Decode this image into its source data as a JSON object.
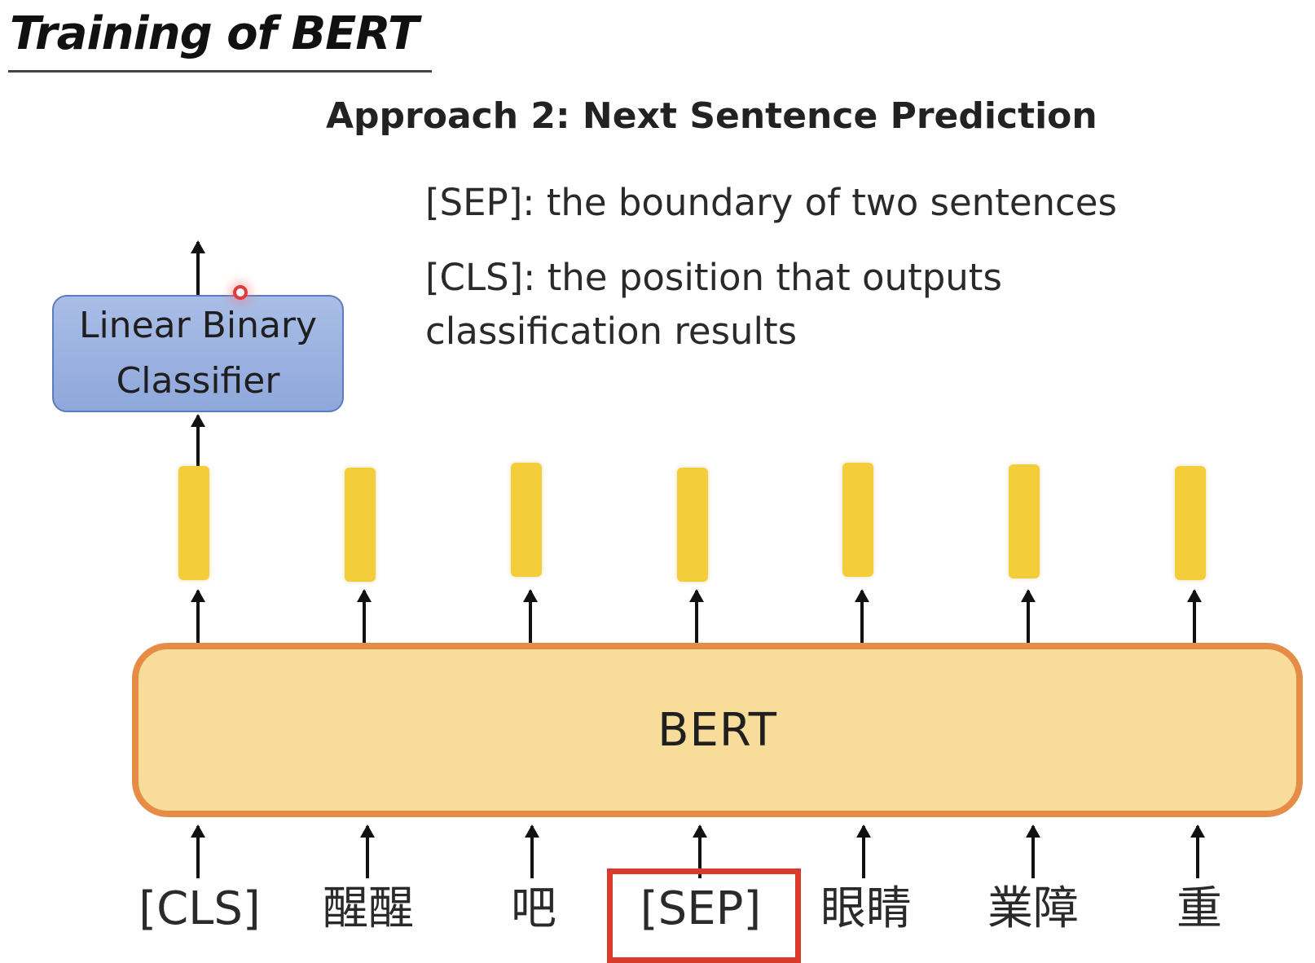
{
  "slide": {
    "title": "Training of BERT",
    "subtitle": "Approach 2: Next Sentence Prediction"
  },
  "notes": {
    "sep": "[SEP]: the boundary of two sentences",
    "cls_line1": "[CLS]: the position that outputs",
    "cls_line2": "classification results"
  },
  "classifier": {
    "line1": "Linear Binary",
    "line2": "Classifier"
  },
  "model": {
    "label": "BERT"
  },
  "tokens": [
    "[CLS]",
    "醒醒",
    "吧",
    "[SEP]",
    "眼睛",
    "業障",
    "重"
  ],
  "highlighted_token": "[SEP]",
  "colors": {
    "model_fill": "#f8dc9a",
    "model_border": "#e58d47",
    "embedding": "#f4cd3a",
    "classifier_fill": "#a9bde6",
    "highlight": "#d93a2b"
  }
}
